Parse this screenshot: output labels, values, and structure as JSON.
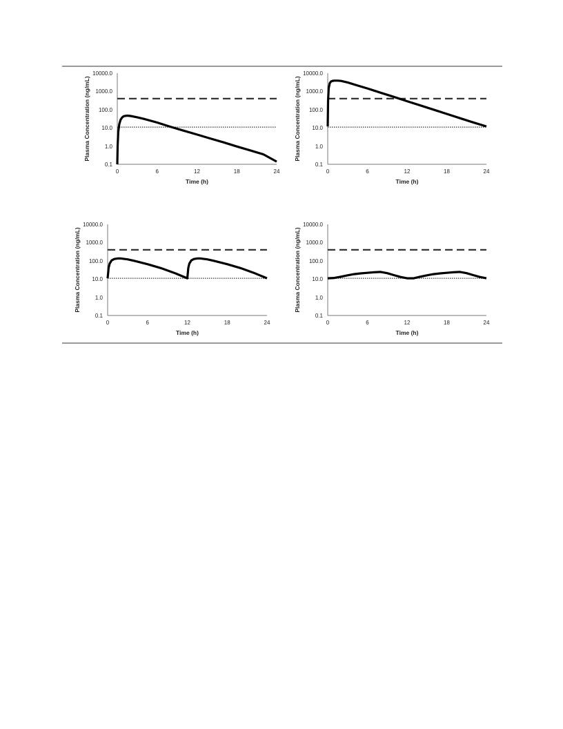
{
  "figure": {
    "x_tick_labels": [
      "0",
      "6",
      "12",
      "18",
      "24"
    ],
    "y_tick_labels": [
      "10000.0",
      "1000.0",
      "100.0",
      "10.0",
      "1.0",
      "0.1"
    ]
  },
  "chart_data": [
    {
      "type": "line",
      "xlabel": "Time (h)",
      "ylabel": "Plasma Concentration (ng/mL)",
      "xlim": [
        0,
        24
      ],
      "ylim": [
        0.1,
        10000
      ],
      "yscale": "log",
      "xticks": [
        0,
        6,
        12,
        18,
        24
      ],
      "yticks": [
        10000,
        1000,
        100,
        10,
        1,
        0.1
      ],
      "grid": false,
      "reference_lines": [
        {
          "style": "dashed",
          "value": 400
        },
        {
          "style": "dotted",
          "value": 11
        }
      ],
      "series": [
        {
          "x": [
            0,
            0.05,
            0.15,
            0.3,
            0.5,
            0.75,
            1,
            1.5,
            2,
            3,
            4,
            6,
            8,
            10,
            12,
            14,
            16,
            18,
            20,
            22,
            24
          ],
          "y": [
            0.1,
            1,
            6,
            16,
            28,
            38,
            44,
            47,
            45,
            38,
            31,
            19.5,
            11.5,
            7,
            4.3,
            2.6,
            1.6,
            0.95,
            0.58,
            0.35,
            0.14
          ]
        }
      ]
    },
    {
      "type": "line",
      "xlabel": "Time (h)",
      "ylabel": "Plasma Concentration (ng/mL)",
      "xlim": [
        0,
        24
      ],
      "ylim": [
        0.1,
        10000
      ],
      "yscale": "log",
      "xticks": [
        0,
        6,
        12,
        18,
        24
      ],
      "yticks": [
        10000,
        1000,
        100,
        10,
        1,
        0.1
      ],
      "grid": false,
      "reference_lines": [
        {
          "style": "dashed",
          "value": 400
        },
        {
          "style": "dotted",
          "value": 11
        }
      ],
      "series": [
        {
          "x": [
            0,
            0.05,
            0.15,
            0.3,
            0.5,
            0.75,
            1,
            1.5,
            2,
            3,
            4,
            6,
            8,
            10,
            12,
            14,
            16,
            18,
            20,
            22,
            24
          ],
          "y": [
            12,
            300,
            1500,
            2800,
            3500,
            3800,
            3900,
            3900,
            3750,
            3100,
            2400,
            1450,
            850,
            500,
            290,
            170,
            100,
            58,
            34,
            20,
            12
          ]
        }
      ]
    },
    {
      "type": "line",
      "xlabel": "Time (h)",
      "ylabel": "Plasma Concentration (ng/mL)",
      "xlim": [
        0,
        24
      ],
      "ylim": [
        0.1,
        10000
      ],
      "yscale": "log",
      "xticks": [
        0,
        6,
        12,
        18,
        24
      ],
      "yticks": [
        10000,
        1000,
        100,
        10,
        1,
        0.1
      ],
      "grid": false,
      "reference_lines": [
        {
          "style": "dashed",
          "value": 400
        },
        {
          "style": "dotted",
          "value": 11
        }
      ],
      "series": [
        {
          "x": [
            0,
            0.15,
            0.3,
            0.6,
            1,
            1.5,
            2,
            3,
            4,
            6,
            8,
            10,
            12,
            12.15,
            12.3,
            12.6,
            13,
            13.5,
            14,
            15,
            16,
            18,
            20,
            22,
            24
          ],
          "y": [
            11,
            40,
            70,
            105,
            125,
            135,
            135,
            120,
            100,
            65,
            40,
            22,
            11,
            40,
            70,
            105,
            125,
            135,
            135,
            120,
            100,
            65,
            40,
            22,
            11
          ]
        }
      ]
    },
    {
      "type": "line",
      "xlabel": "Time (h)",
      "ylabel": "Plasma Concentration (ng/mL)",
      "xlim": [
        0,
        24
      ],
      "ylim": [
        0.1,
        10000
      ],
      "yscale": "log",
      "xticks": [
        0,
        6,
        12,
        18,
        24
      ],
      "yticks": [
        10000,
        1000,
        100,
        10,
        1,
        0.1
      ],
      "grid": false,
      "reference_lines": [
        {
          "style": "dashed",
          "value": 400
        },
        {
          "style": "dotted",
          "value": 11
        }
      ],
      "series": [
        {
          "x": [
            0,
            1,
            2,
            3,
            4,
            5,
            6,
            7,
            8,
            9,
            10,
            11,
            12,
            13,
            14,
            15,
            16,
            17,
            18,
            19,
            20,
            21,
            22,
            23,
            24
          ],
          "y": [
            11,
            11.5,
            13.5,
            16,
            18.5,
            20.5,
            22,
            23.5,
            24.5,
            21,
            16.5,
            13,
            11,
            11,
            13.5,
            16,
            18.5,
            20.5,
            22,
            23.5,
            24.5,
            21,
            16.5,
            13,
            11
          ]
        }
      ]
    }
  ]
}
